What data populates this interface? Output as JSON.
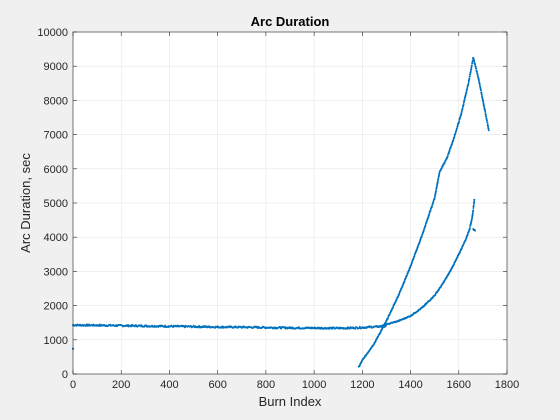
{
  "chart_data": {
    "type": "scatter",
    "title": "Arc Duration",
    "xlabel": "Burn Index",
    "ylabel": "Arc Duration, sec",
    "xlim": [
      0,
      1800
    ],
    "ylim": [
      0,
      10000
    ],
    "x_ticks": [
      0,
      200,
      400,
      600,
      800,
      1000,
      1200,
      1400,
      1600,
      1800
    ],
    "y_ticks": [
      0,
      1000,
      2000,
      3000,
      4000,
      5000,
      6000,
      7000,
      8000,
      9000,
      10000
    ],
    "grid": true,
    "marker_color": "#0072BD",
    "series": [
      {
        "description_points": "flat band",
        "x": [
          0,
          100,
          200,
          300,
          400,
          500,
          600,
          700,
          800,
          900,
          1000,
          1100,
          1150,
          1200,
          1250,
          1300
        ],
        "y": [
          1430,
          1425,
          1415,
          1405,
          1395,
          1385,
          1375,
          1370,
          1360,
          1350,
          1345,
          1340,
          1345,
          1360,
          1380,
          1400
        ]
      },
      {
        "x": [
          1185,
          1200,
          1250,
          1300,
          1350,
          1400,
          1450,
          1500,
          1520,
          1550,
          1580,
          1610,
          1640,
          1660,
          1680,
          1700,
          1720,
          1725
        ],
        "y": [
          200,
          400,
          900,
          1550,
          2300,
          3150,
          4100,
          5150,
          5900,
          6300,
          6900,
          7600,
          8500,
          9250,
          8700,
          8000,
          7300,
          7100
        ]
      },
      {
        "x": [
          1280,
          1300,
          1350,
          1400,
          1450,
          1500,
          1530,
          1560,
          1590,
          1610,
          1630,
          1645,
          1655,
          1660,
          1665
        ],
        "y": [
          1400,
          1450,
          1550,
          1700,
          1950,
          2300,
          2600,
          2950,
          3350,
          3650,
          3950,
          4250,
          4550,
          4800,
          5150
        ]
      },
      {
        "x": [
          1660,
          1665,
          1668
        ],
        "y": [
          4250,
          4200,
          4180
        ]
      },
      {
        "x": [
          0
        ],
        "y": [
          740
        ]
      }
    ]
  }
}
